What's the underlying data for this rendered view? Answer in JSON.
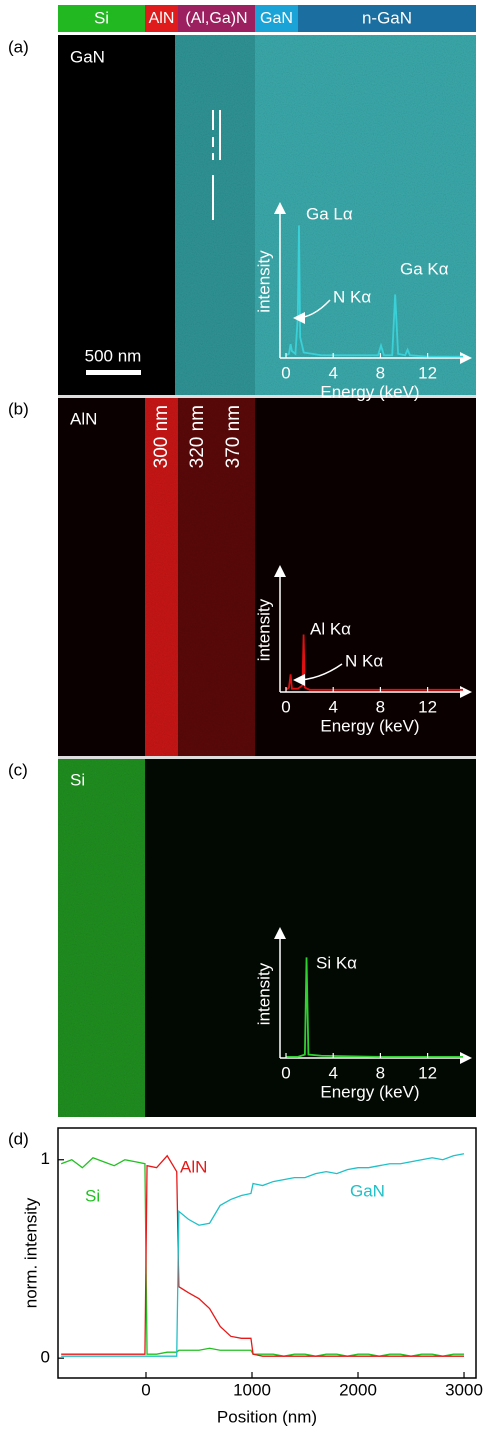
{
  "header_bar": [
    {
      "label": "Si",
      "color": "#22b822"
    },
    {
      "label": "AlN",
      "color": "#e01b1b"
    },
    {
      "label": "(Al,Ga)N",
      "color": "#9c2060"
    },
    {
      "label": "GaN",
      "color": "#1aa3d6"
    },
    {
      "label": "n-GaN",
      "color": "#1a6fa0"
    }
  ],
  "panels": [
    {
      "label": "(a)",
      "map_label": "GaN",
      "scale_bar": "500 nm"
    },
    {
      "label": "(b)",
      "map_label": "AlN",
      "thickness_labels": [
        "300 nm",
        "320 nm",
        "370 nm"
      ]
    },
    {
      "label": "(c)",
      "map_label": "Si"
    },
    {
      "label": "(d)"
    }
  ],
  "chart_data": [
    {
      "type": "line",
      "xlabel": "Position (nm)",
      "ylabel": "norm. intensity",
      "x": [
        -800,
        -700,
        -600,
        -500,
        -400,
        -300,
        -200,
        -100,
        -10,
        10,
        100,
        200,
        290,
        310,
        400,
        500,
        600,
        700,
        800,
        900,
        990,
        1010,
        1100,
        1200,
        1300,
        1400,
        1500,
        1600,
        1700,
        1800,
        1900,
        2000,
        2100,
        2200,
        2300,
        2400,
        2500,
        2600,
        2700,
        2800,
        2900,
        3000
      ],
      "series": [
        {
          "name": "Si",
          "color": "#22c022",
          "values": [
            0.98,
            1.0,
            0.96,
            1.01,
            0.99,
            0.97,
            1.0,
            0.99,
            0.98,
            0.02,
            0.02,
            0.03,
            0.03,
            0.04,
            0.04,
            0.04,
            0.05,
            0.04,
            0.04,
            0.04,
            0.04,
            0.02,
            0.02,
            0.02,
            0.01,
            0.02,
            0.02,
            0.01,
            0.02,
            0.02,
            0.01,
            0.02,
            0.02,
            0.01,
            0.02,
            0.02,
            0.01,
            0.02,
            0.02,
            0.01,
            0.02,
            0.02
          ]
        },
        {
          "name": "AlN",
          "color": "#e81818",
          "values": [
            0.02,
            0.02,
            0.02,
            0.02,
            0.02,
            0.02,
            0.02,
            0.02,
            0.02,
            0.97,
            0.96,
            1.02,
            0.94,
            0.36,
            0.33,
            0.3,
            0.25,
            0.16,
            0.11,
            0.1,
            0.1,
            0.02,
            0.01,
            0.01,
            0.01,
            0.01,
            0.01,
            0.01,
            0.01,
            0.01,
            0.01,
            0.01,
            0.01,
            0.01,
            0.01,
            0.01,
            0.01,
            0.01,
            0.01,
            0.01,
            0.01,
            0.01
          ]
        },
        {
          "name": "GaN",
          "color": "#20c0c8",
          "values": [
            0.01,
            0.01,
            0.01,
            0.01,
            0.01,
            0.01,
            0.01,
            0.01,
            0.01,
            0.01,
            0.01,
            0.01,
            0.01,
            0.74,
            0.7,
            0.67,
            0.68,
            0.77,
            0.8,
            0.82,
            0.83,
            0.88,
            0.87,
            0.89,
            0.9,
            0.91,
            0.91,
            0.93,
            0.94,
            0.93,
            0.95,
            0.96,
            0.96,
            0.97,
            0.98,
            0.98,
            0.99,
            1.0,
            1.01,
            1.0,
            1.02,
            1.03
          ]
        }
      ],
      "xlim": [
        -830,
        3113
      ],
      "ylim": [
        -0.1,
        1.16
      ],
      "xticks": [
        0,
        1000,
        2000,
        3000
      ],
      "yticks": [
        0,
        1
      ]
    },
    {
      "type": "line",
      "xlabel": "Energy (keV)",
      "ylabel": "intensity",
      "x": [
        0,
        0.25,
        0.39,
        0.5,
        0.8,
        1.0,
        1.1,
        1.2,
        1.5,
        3,
        6,
        7.8,
        8.05,
        8.3,
        9.0,
        9.25,
        9.5,
        10.1,
        10.3,
        10.5,
        12,
        15
      ],
      "series": [
        {
          "color": "#3ad0d8",
          "values": [
            0.02,
            0.03,
            0.1,
            0.05,
            0.03,
            0.3,
            0.96,
            0.15,
            0.04,
            0.02,
            0.02,
            0.02,
            0.09,
            0.02,
            0.02,
            0.46,
            0.03,
            0.02,
            0.06,
            0.02,
            0.01,
            0.01
          ]
        }
      ],
      "annotations": [
        "Ga Lα",
        "N Kα",
        "Ga Kα"
      ],
      "xlim": [
        0,
        15
      ],
      "ylim": [
        0,
        1.05
      ],
      "xticks": [
        0,
        4,
        8,
        12
      ]
    },
    {
      "type": "line",
      "xlabel": "Energy (keV)",
      "ylabel": "intensity",
      "x": [
        0,
        0.25,
        0.39,
        0.5,
        1.0,
        1.4,
        1.49,
        1.6,
        2,
        6,
        10,
        15
      ],
      "series": [
        {
          "color": "#e01010",
          "values": [
            0.02,
            0.04,
            0.16,
            0.03,
            0.03,
            0.06,
            0.52,
            0.04,
            0.02,
            0.02,
            0.02,
            0.02
          ]
        }
      ],
      "annotations": [
        "Al Kα",
        "N Kα"
      ],
      "xlim": [
        0,
        15
      ],
      "ylim": [
        0,
        1.05
      ],
      "xticks": [
        0,
        4,
        8,
        12
      ]
    },
    {
      "type": "line",
      "xlabel": "Energy (keV)",
      "ylabel": "intensity",
      "x": [
        0,
        1.0,
        1.6,
        1.74,
        1.9,
        3,
        8,
        15
      ],
      "series": [
        {
          "color": "#30d030",
          "values": [
            0.01,
            0.01,
            0.03,
            0.88,
            0.03,
            0.02,
            0.01,
            0.01
          ]
        }
      ],
      "annotations": [
        "Si Kα"
      ],
      "xlim": [
        0,
        15
      ],
      "ylim": [
        0,
        1.05
      ],
      "xticks": [
        0,
        4,
        8,
        12
      ]
    }
  ]
}
